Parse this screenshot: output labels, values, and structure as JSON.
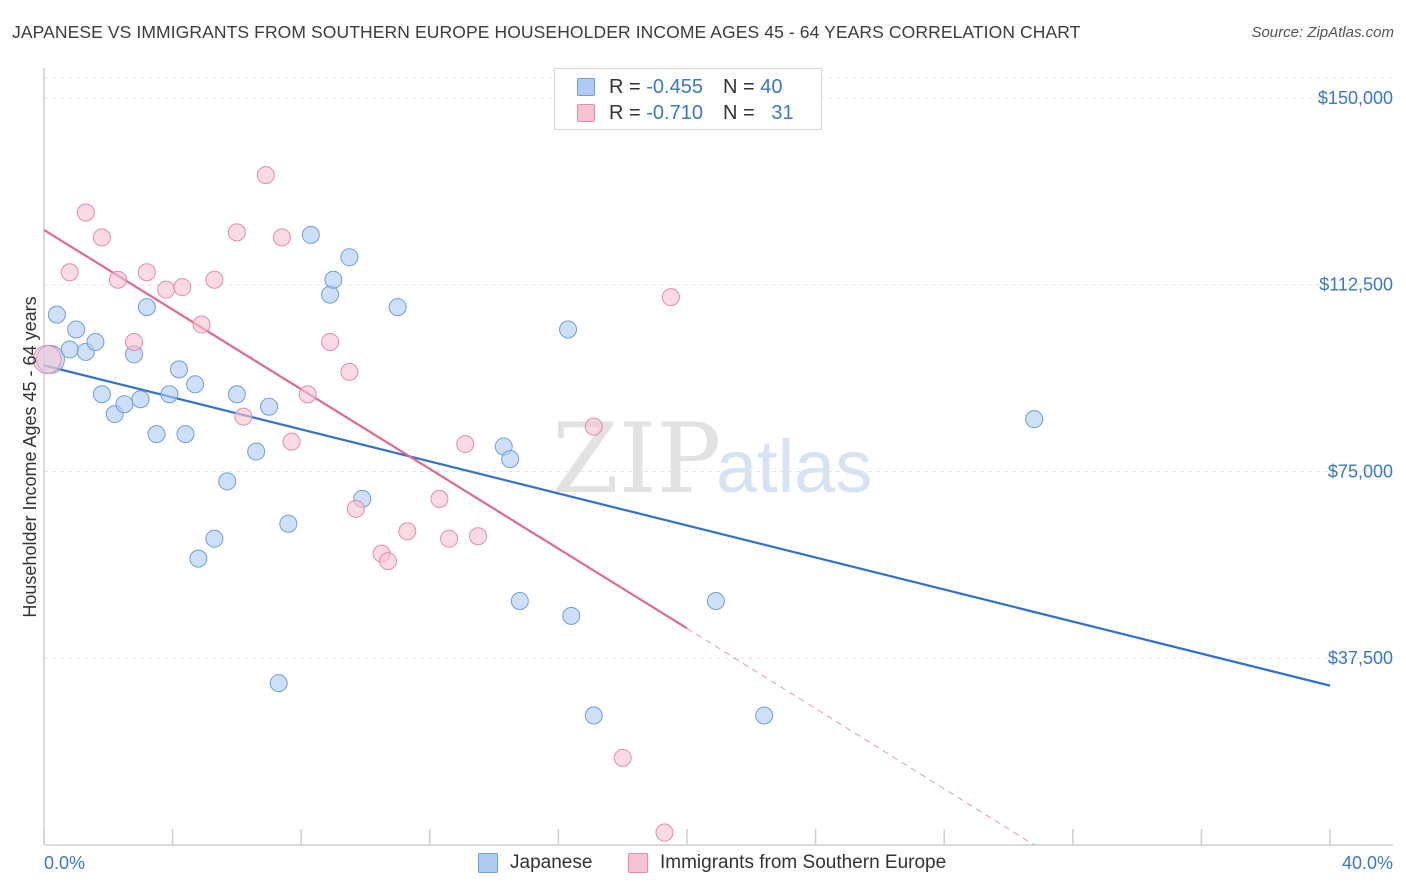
{
  "title": "JAPANESE VS IMMIGRANTS FROM SOUTHERN EUROPE HOUSEHOLDER INCOME AGES 45 - 64 YEARS CORRELATION CHART",
  "source": "Source: ZipAtlas.com",
  "watermark": {
    "zip": "ZIP",
    "atlas": "atlas"
  },
  "legend": {
    "rows": [
      {
        "r_label": "R =",
        "r_value": "-0.455",
        "n_label": "N =",
        "n_value": "40",
        "color": "#aecbf2",
        "border": "#6f9fd8"
      },
      {
        "r_label": "R =",
        "r_value": "-0.710",
        "n_label": "N =",
        "n_value": "31",
        "color": "#f7c2d1",
        "border": "#e88ba8"
      }
    ]
  },
  "bottom_legend": [
    {
      "label": "Japanese",
      "color": "#aecbf2",
      "border": "#6f9fd8"
    },
    {
      "label": "Immigrants from Southern Europe",
      "color": "#f7c2d1",
      "border": "#e88ba8"
    }
  ],
  "chart_data": {
    "type": "scatter",
    "title": "JAPANESE VS IMMIGRANTS FROM SOUTHERN EUROPE HOUSEHOLDER INCOME AGES 45 - 64 YEARS CORRELATION CHART",
    "xlabel": "",
    "ylabel": "Householder Income Ages 45 - 64 years",
    "xlim": [
      0,
      40
    ],
    "ylim": [
      0,
      154000
    ],
    "x_tick_labels": [
      "0.0%",
      "40.0%"
    ],
    "y_ticks": [
      37500,
      75000,
      112500,
      150000
    ],
    "y_tick_labels": [
      "$37,500",
      "$75,000",
      "$112,500",
      "$150,000"
    ],
    "grid": true,
    "series": [
      {
        "name": "Japanese",
        "color": "#6f9fd8",
        "fill": "#aecbf2",
        "trend_color": "#2f72cc",
        "trend": {
          "x": [
            0,
            40
          ],
          "y": [
            96300,
            32000
          ]
        },
        "points": [
          {
            "x": 0.2,
            "y": 97500,
            "big": true
          },
          {
            "x": 0.4,
            "y": 106500
          },
          {
            "x": 0.8,
            "y": 99500
          },
          {
            "x": 1.0,
            "y": 103500
          },
          {
            "x": 1.3,
            "y": 99000
          },
          {
            "x": 1.6,
            "y": 101000
          },
          {
            "x": 1.8,
            "y": 90500
          },
          {
            "x": 2.2,
            "y": 86500
          },
          {
            "x": 2.5,
            "y": 88500
          },
          {
            "x": 2.8,
            "y": 98500
          },
          {
            "x": 3.0,
            "y": 89500
          },
          {
            "x": 3.2,
            "y": 108000
          },
          {
            "x": 3.5,
            "y": 82500
          },
          {
            "x": 3.9,
            "y": 90500
          },
          {
            "x": 4.2,
            "y": 95500
          },
          {
            "x": 4.4,
            "y": 82500
          },
          {
            "x": 4.7,
            "y": 92500
          },
          {
            "x": 4.8,
            "y": 57500
          },
          {
            "x": 5.3,
            "y": 61500
          },
          {
            "x": 5.7,
            "y": 73000
          },
          {
            "x": 6.0,
            "y": 90500
          },
          {
            "x": 6.6,
            "y": 79000
          },
          {
            "x": 7.0,
            "y": 88000
          },
          {
            "x": 7.3,
            "y": 32500
          },
          {
            "x": 7.6,
            "y": 64500
          },
          {
            "x": 8.3,
            "y": 122500
          },
          {
            "x": 8.9,
            "y": 110500
          },
          {
            "x": 9.0,
            "y": 113500
          },
          {
            "x": 9.5,
            "y": 118000
          },
          {
            "x": 9.9,
            "y": 69500
          },
          {
            "x": 11.0,
            "y": 108000
          },
          {
            "x": 14.3,
            "y": 80000
          },
          {
            "x": 14.5,
            "y": 77500
          },
          {
            "x": 14.8,
            "y": 49000
          },
          {
            "x": 16.3,
            "y": 103500
          },
          {
            "x": 16.4,
            "y": 46000
          },
          {
            "x": 17.1,
            "y": 26000
          },
          {
            "x": 20.9,
            "y": 49000
          },
          {
            "x": 22.4,
            "y": 26000
          },
          {
            "x": 30.8,
            "y": 85500
          }
        ]
      },
      {
        "name": "Immigrants from Southern Europe",
        "color": "#e88ba8",
        "fill": "#f7c2d1",
        "trend_color": "#e0698f",
        "trend": {
          "x": [
            0,
            20
          ],
          "y": [
            123500,
            43500
          ]
        },
        "trend_extension": {
          "x": [
            20,
            30.8
          ],
          "y": [
            43500,
            0
          ]
        },
        "points": [
          {
            "x": 0.1,
            "y": 97500,
            "big": true
          },
          {
            "x": 0.8,
            "y": 115000
          },
          {
            "x": 1.3,
            "y": 127000
          },
          {
            "x": 1.8,
            "y": 122000
          },
          {
            "x": 2.3,
            "y": 113500
          },
          {
            "x": 2.8,
            "y": 101000
          },
          {
            "x": 3.2,
            "y": 115000
          },
          {
            "x": 3.8,
            "y": 111500
          },
          {
            "x": 4.3,
            "y": 112000
          },
          {
            "x": 4.9,
            "y": 104500
          },
          {
            "x": 5.3,
            "y": 113500
          },
          {
            "x": 6.0,
            "y": 123000
          },
          {
            "x": 6.2,
            "y": 86000
          },
          {
            "x": 6.9,
            "y": 134500
          },
          {
            "x": 7.4,
            "y": 122000
          },
          {
            "x": 7.7,
            "y": 81000
          },
          {
            "x": 8.2,
            "y": 90500
          },
          {
            "x": 8.9,
            "y": 101000
          },
          {
            "x": 9.5,
            "y": 95000
          },
          {
            "x": 9.7,
            "y": 67500
          },
          {
            "x": 10.5,
            "y": 58500
          },
          {
            "x": 10.7,
            "y": 57000
          },
          {
            "x": 11.3,
            "y": 63000
          },
          {
            "x": 12.3,
            "y": 69500
          },
          {
            "x": 12.6,
            "y": 61500
          },
          {
            "x": 13.1,
            "y": 80500
          },
          {
            "x": 13.5,
            "y": 62000
          },
          {
            "x": 17.1,
            "y": 84000
          },
          {
            "x": 18.0,
            "y": 17500
          },
          {
            "x": 19.5,
            "y": 110000
          },
          {
            "x": 19.3,
            "y": 2500
          }
        ]
      }
    ]
  }
}
